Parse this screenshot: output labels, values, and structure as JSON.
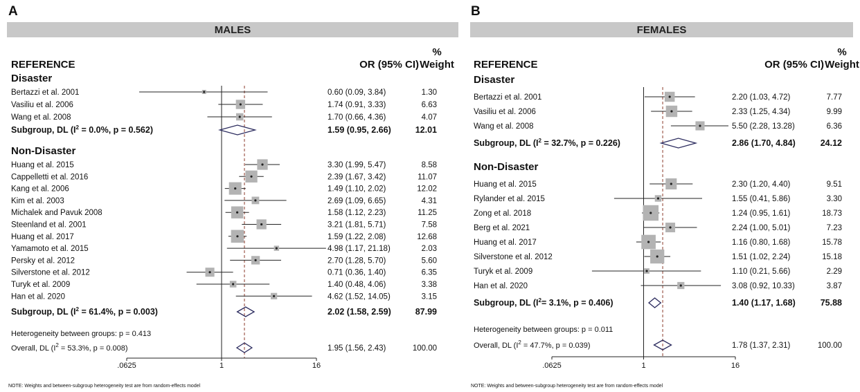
{
  "axis": {
    "ticks": [
      {
        "value": 0.0625,
        "label": ".0625"
      },
      {
        "value": 1,
        "label": "1"
      },
      {
        "value": 16,
        "label": "16"
      }
    ],
    "scale": "log",
    "null_line": 1
  },
  "headers": {
    "reference": "REFERENCE",
    "or_ci": "OR (95% CI)",
    "weight_top": "%",
    "weight_bottom": "Weight"
  },
  "panels": [
    {
      "letter": "A",
      "banner": "MALES",
      "overall_or": 1.95,
      "groups": [
        {
          "name": "Disaster",
          "studies": [
            {
              "label": "Bertazzi et al. 2001",
              "or": 0.6,
              "lo": 0.09,
              "hi": 3.84,
              "ci_text": "0.60 (0.09, 3.84)",
              "weight": "1.30"
            },
            {
              "label": "Vasiliu et al. 2006",
              "or": 1.74,
              "lo": 0.91,
              "hi": 3.33,
              "ci_text": "1.74 (0.91, 3.33)",
              "weight": "6.63"
            },
            {
              "label": "Wang et al. 2008",
              "or": 1.7,
              "lo": 0.66,
              "hi": 4.36,
              "ci_text": "1.70 (0.66, 4.36)",
              "weight": "4.07"
            }
          ],
          "subgroup": {
            "label_prefix": "Subgroup, DL (I",
            "label_sup": "2",
            "label_suffix": " = 0.0%, p = 0.562)",
            "or": 1.59,
            "lo": 0.95,
            "hi": 2.66,
            "ci_text": "1.59 (0.95, 2.66)",
            "weight": "12.01"
          }
        },
        {
          "name": "Non-Disaster",
          "studies": [
            {
              "label": "Huang et al. 2015",
              "or": 3.3,
              "lo": 1.99,
              "hi": 5.47,
              "ci_text": "3.30 (1.99, 5.47)",
              "weight": "8.58"
            },
            {
              "label": "Cappelletti et al. 2016",
              "or": 2.39,
              "lo": 1.67,
              "hi": 3.42,
              "ci_text": "2.39 (1.67, 3.42)",
              "weight": "11.07"
            },
            {
              "label": "Kang et al. 2006",
              "or": 1.49,
              "lo": 1.1,
              "hi": 2.02,
              "ci_text": "1.49 (1.10, 2.02)",
              "weight": "12.02"
            },
            {
              "label": "Kim et al. 2003",
              "or": 2.69,
              "lo": 1.09,
              "hi": 6.65,
              "ci_text": "2.69 (1.09, 6.65)",
              "weight": "4.31"
            },
            {
              "label": "Michalek and Pavuk 2008",
              "or": 1.58,
              "lo": 1.12,
              "hi": 2.23,
              "ci_text": "1.58 (1.12, 2.23)",
              "weight": "11.25"
            },
            {
              "label": "Steenland et al. 2001",
              "or": 3.21,
              "lo": 1.81,
              "hi": 5.71,
              "ci_text": "3.21 (1.81, 5.71)",
              "weight": "7.58"
            },
            {
              "label": "Huang et al. 2017",
              "or": 1.59,
              "lo": 1.22,
              "hi": 2.08,
              "ci_text": "1.59 (1.22, 2.08)",
              "weight": "12.68"
            },
            {
              "label": "Yamamoto et al. 2015",
              "or": 4.98,
              "lo": 1.17,
              "hi": 21.18,
              "ci_text": "4.98 (1.17, 21.18)",
              "weight": "2.03"
            },
            {
              "label": "Persky et al. 2012",
              "or": 2.7,
              "lo": 1.28,
              "hi": 5.7,
              "ci_text": "2.70 (1.28, 5.70)",
              "weight": "5.60"
            },
            {
              "label": "Silverstone et al. 2012",
              "or": 0.71,
              "lo": 0.36,
              "hi": 1.4,
              "ci_text": "0.71 (0.36, 1.40)",
              "weight": "6.35"
            },
            {
              "label": "Turyk et al. 2009",
              "or": 1.4,
              "lo": 0.48,
              "hi": 4.06,
              "ci_text": "1.40 (0.48, 4.06)",
              "weight": "3.38"
            },
            {
              "label": "Han et al. 2020",
              "or": 4.62,
              "lo": 1.52,
              "hi": 14.05,
              "ci_text": "4.62 (1.52, 14.05)",
              "weight": "3.15"
            }
          ],
          "subgroup": {
            "label_prefix": "Subgroup, DL (I",
            "label_sup": "2",
            "label_suffix": " = 61.4%, p = 0.003)",
            "or": 2.02,
            "lo": 1.58,
            "hi": 2.59,
            "ci_text": "2.02 (1.58, 2.59)",
            "weight": "87.99"
          }
        }
      ],
      "heterogeneity": "Heterogeneity between groups: p = 0.413",
      "overall": {
        "label_prefix": "Overall, DL (I",
        "label_sup": "2",
        "label_suffix": " = 53.3%, p = 0.008)",
        "or": 1.95,
        "lo": 1.56,
        "hi": 2.43,
        "ci_text": "1.95 (1.56, 2.43)",
        "weight": "100.00"
      },
      "note": "NOTE: Weights and between-subgroup heterogeneity test are from random-effects model"
    },
    {
      "letter": "B",
      "banner": "FEMALES",
      "overall_or": 1.78,
      "groups": [
        {
          "name": "Disaster",
          "studies": [
            {
              "label": "Bertazzi et al. 2001",
              "or": 2.2,
              "lo": 1.03,
              "hi": 4.72,
              "ci_text": "2.20 (1.03, 4.72)",
              "weight": "7.77"
            },
            {
              "label": "Vasiliu et al. 2006",
              "or": 2.33,
              "lo": 1.25,
              "hi": 4.34,
              "ci_text": "2.33 (1.25, 4.34)",
              "weight": "9.99"
            },
            {
              "label": "Wang et al. 2008",
              "or": 5.5,
              "lo": 2.28,
              "hi": 13.28,
              "ci_text": "5.50 (2.28, 13.28)",
              "weight": "6.36"
            }
          ],
          "subgroup": {
            "label_prefix": "Subgroup, DL (I",
            "label_sup": "2",
            "label_suffix": " = 32.7%, p = 0.226)",
            "or": 2.86,
            "lo": 1.7,
            "hi": 4.84,
            "ci_text": "2.86 (1.70, 4.84)",
            "weight": "24.12"
          }
        },
        {
          "name": "Non-Disaster",
          "studies": [
            {
              "label": "Huang et al. 2015",
              "or": 2.3,
              "lo": 1.2,
              "hi": 4.4,
              "ci_text": "2.30 (1.20, 4.40)",
              "weight": "9.51"
            },
            {
              "label": "Rylander et al. 2015",
              "or": 1.55,
              "lo": 0.41,
              "hi": 5.86,
              "ci_text": "1.55 (0.41, 5.86)",
              "weight": "3.30"
            },
            {
              "label": "Zong et al. 2018",
              "or": 1.24,
              "lo": 0.95,
              "hi": 1.61,
              "ci_text": "1.24 (0.95, 1.61)",
              "weight": "18.73"
            },
            {
              "label": "Berg et al. 2021",
              "or": 2.24,
              "lo": 1.0,
              "hi": 5.01,
              "ci_text": "2.24 (1.00, 5.01)",
              "weight": "7.23"
            },
            {
              "label": "Huang et al. 2017",
              "or": 1.16,
              "lo": 0.8,
              "hi": 1.68,
              "ci_text": "1.16 (0.80, 1.68)",
              "weight": "15.78"
            },
            {
              "label": "Silverstone et al. 2012",
              "or": 1.51,
              "lo": 1.02,
              "hi": 2.24,
              "ci_text": "1.51 (1.02, 2.24)",
              "weight": "15.18"
            },
            {
              "label": "Turyk et al. 2009",
              "or": 1.1,
              "lo": 0.21,
              "hi": 5.66,
              "ci_text": "1.10 (0.21, 5.66)",
              "weight": "2.29"
            },
            {
              "label": "Han et al. 2020",
              "or": 3.08,
              "lo": 0.92,
              "hi": 10.33,
              "ci_text": "3.08 (0.92, 10.33)",
              "weight": "3.87"
            }
          ],
          "subgroup": {
            "label_prefix": "Subgroup, DL (I",
            "label_sup": "2",
            "label_suffix": "= 3.1%, p = 0.406)",
            "or": 1.4,
            "lo": 1.17,
            "hi": 1.68,
            "ci_text": "1.40 (1.17, 1.68)",
            "weight": "75.88"
          }
        }
      ],
      "heterogeneity": "Heterogeneity between groups: p = 0.011",
      "overall": {
        "label_prefix": "Overall, DL (I",
        "label_sup": "2",
        "label_suffix": " = 47.7%, p = 0.039)",
        "or": 1.78,
        "lo": 1.37,
        "hi": 2.31,
        "ci_text": "1.78 (1.37, 2.31)",
        "weight": "100.00"
      },
      "note": "NOTE: Weights and between-subgroup heterogeneity test are from random-effects model"
    }
  ],
  "colors": {
    "banner": "#c8c8c8",
    "box": "#b3b3b3",
    "line": "#222222",
    "ref_line": "#8b3a2a",
    "diamond": "#2b2b5e"
  },
  "chart_data": [
    {
      "type": "forest",
      "title": "MALES",
      "x_scale": "log",
      "xticks": [
        0.0625,
        1,
        16
      ],
      "null_line": 1,
      "series": [
        {
          "group": "Disaster",
          "labels": [
            "Bertazzi et al. 2001",
            "Vasiliu et al. 2006",
            "Wang et al. 2008"
          ],
          "or": [
            0.6,
            1.74,
            1.7
          ],
          "lo": [
            0.09,
            0.91,
            0.66
          ],
          "hi": [
            3.84,
            3.33,
            4.36
          ],
          "weight": [
            1.3,
            6.63,
            4.07
          ],
          "subgroup": {
            "or": 1.59,
            "lo": 0.95,
            "hi": 2.66,
            "weight": 12.01
          }
        },
        {
          "group": "Non-Disaster",
          "labels": [
            "Huang et al. 2015",
            "Cappelletti et al. 2016",
            "Kang et al. 2006",
            "Kim et al. 2003",
            "Michalek and Pavuk 2008",
            "Steenland et al. 2001",
            "Huang et al. 2017",
            "Yamamoto et al. 2015",
            "Persky et al. 2012",
            "Silverstone et al. 2012",
            "Turyk et al. 2009",
            "Han et al. 2020"
          ],
          "or": [
            3.3,
            2.39,
            1.49,
            2.69,
            1.58,
            3.21,
            1.59,
            4.98,
            2.7,
            0.71,
            1.4,
            4.62
          ],
          "lo": [
            1.99,
            1.67,
            1.1,
            1.09,
            1.12,
            1.81,
            1.22,
            1.17,
            1.28,
            0.36,
            0.48,
            1.52
          ],
          "hi": [
            5.47,
            3.42,
            2.02,
            6.65,
            2.23,
            5.71,
            2.08,
            21.18,
            5.7,
            1.4,
            4.06,
            14.05
          ],
          "weight": [
            8.58,
            11.07,
            12.02,
            4.31,
            11.25,
            7.58,
            12.68,
            2.03,
            5.6,
            6.35,
            3.38,
            3.15
          ],
          "subgroup": {
            "or": 2.02,
            "lo": 1.58,
            "hi": 2.59,
            "weight": 87.99
          }
        }
      ],
      "overall": {
        "or": 1.95,
        "lo": 1.56,
        "hi": 2.43,
        "weight": 100.0
      }
    },
    {
      "type": "forest",
      "title": "FEMALES",
      "x_scale": "log",
      "xticks": [
        0.0625,
        1,
        16
      ],
      "null_line": 1,
      "series": [
        {
          "group": "Disaster",
          "labels": [
            "Bertazzi et al. 2001",
            "Vasiliu et al. 2006",
            "Wang et al. 2008"
          ],
          "or": [
            2.2,
            2.33,
            5.5
          ],
          "lo": [
            1.03,
            1.25,
            2.28
          ],
          "hi": [
            4.72,
            4.34,
            13.28
          ],
          "weight": [
            7.77,
            9.99,
            6.36
          ],
          "subgroup": {
            "or": 2.86,
            "lo": 1.7,
            "hi": 4.84,
            "weight": 24.12
          }
        },
        {
          "group": "Non-Disaster",
          "labels": [
            "Huang et al. 2015",
            "Rylander et al. 2015",
            "Zong et al. 2018",
            "Berg et al. 2021",
            "Huang et al. 2017",
            "Silverstone et al. 2012",
            "Turyk et al. 2009",
            "Han et al. 2020"
          ],
          "or": [
            2.3,
            1.55,
            1.24,
            2.24,
            1.16,
            1.51,
            1.1,
            3.08
          ],
          "lo": [
            1.2,
            0.41,
            0.95,
            1.0,
            0.8,
            1.02,
            0.21,
            0.92
          ],
          "hi": [
            4.4,
            5.86,
            1.61,
            5.01,
            1.68,
            2.24,
            5.66,
            10.33
          ],
          "weight": [
            9.51,
            3.3,
            18.73,
            7.23,
            15.78,
            15.18,
            2.29,
            3.87
          ],
          "subgroup": {
            "or": 1.4,
            "lo": 1.17,
            "hi": 1.68,
            "weight": 75.88
          }
        }
      ],
      "overall": {
        "or": 1.78,
        "lo": 1.37,
        "hi": 2.31,
        "weight": 100.0
      }
    }
  ]
}
